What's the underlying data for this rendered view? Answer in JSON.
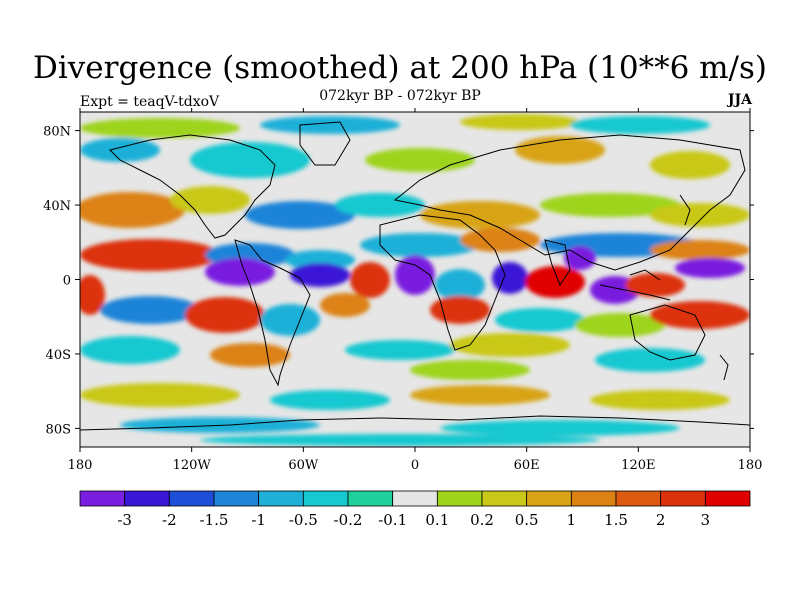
{
  "title": "Divergence (smoothed) at 200 hPa (10**6 m/s)",
  "subtitle": "072kyr BP - 072kyr BP",
  "experiment": "Expt = teaqV-tdxoV",
  "season": "JJA",
  "axes": {
    "longitude_labels": [
      "180",
      "120W",
      "60W",
      "0",
      "60E",
      "120E",
      "180"
    ],
    "latitude_labels": [
      "80N",
      "40N",
      "0",
      "40S",
      "80S"
    ]
  },
  "colorbar": {
    "colors": [
      "#7a1fe0",
      "#3a16d6",
      "#1f4fd8",
      "#1e84d8",
      "#1fb0d8",
      "#16c8d0",
      "#20d09a",
      "#e6e6e6",
      "#9ed41a",
      "#c9c818",
      "#d8a418",
      "#dc8214",
      "#dc5a10",
      "#dc320c",
      "#e00000"
    ],
    "labels": [
      "-3",
      "-2",
      "-1.5",
      "-1",
      "-0.5",
      "-0.2",
      "-0.1",
      "0.1",
      "0.2",
      "0.5",
      "1",
      "1.5",
      "2",
      "3"
    ]
  }
}
